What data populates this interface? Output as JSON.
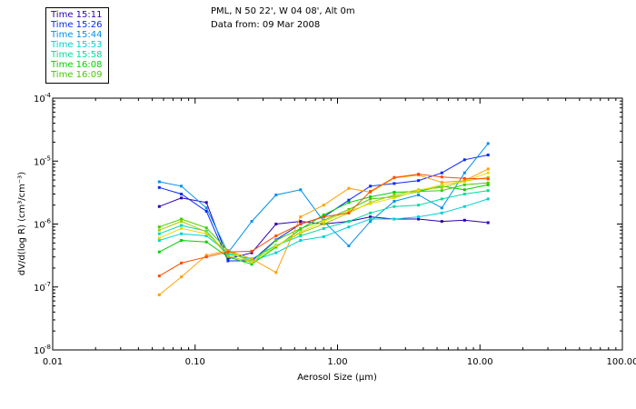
{
  "header": {
    "location": "PML, N 50 22', W 04 08', Alt 0m",
    "date": "Data from: 09 Mar 2008"
  },
  "legend": {
    "entries": [
      {
        "label": "Time 15:11",
        "color": "#2d00b4"
      },
      {
        "label": "Time 15:26",
        "color": "#0a28ff"
      },
      {
        "label": "Time 15:44",
        "color": "#0090ee"
      },
      {
        "label": "Time 15:53",
        "color": "#00d2d2"
      },
      {
        "label": "Time 15:58",
        "color": "#00dca0"
      },
      {
        "label": "Time 16:08",
        "color": "#00d200"
      },
      {
        "label": "Time 16:09",
        "color": "#44cc00"
      }
    ]
  },
  "chart_data": {
    "type": "line",
    "title": "PML, N 50 22', W 04 08', Alt 0m",
    "xlabel": "Aerosol Size (μm)",
    "ylabel": "dV/d(log R) (cm³/cm⁻³)",
    "xscale": "log",
    "yscale": "log",
    "xlim": [
      0.01,
      100
    ],
    "ylim": [
      1e-08,
      0.0001
    ],
    "xticks": [
      {
        "value": 0.01,
        "label": "0.01"
      },
      {
        "value": 0.1,
        "label": "0.10"
      },
      {
        "value": 1,
        "label": "1.00"
      },
      {
        "value": 10,
        "label": "10.00"
      },
      {
        "value": 100,
        "label": "100.00"
      }
    ],
    "yticks": [
      {
        "value": 0.0001,
        "label": "10",
        "exp": "-4"
      },
      {
        "value": 1e-05,
        "label": "10",
        "exp": "-5"
      },
      {
        "value": 1e-06,
        "label": "10",
        "exp": "-6"
      },
      {
        "value": 1e-07,
        "label": "10",
        "exp": "-7"
      },
      {
        "value": 1e-08,
        "label": "10",
        "exp": "-8"
      }
    ],
    "x": [
      0.056,
      0.08,
      0.12,
      0.17,
      0.25,
      0.37,
      0.55,
      0.8,
      1.2,
      1.7,
      2.5,
      3.7,
      5.4,
      7.8,
      11.4
    ],
    "series": [
      {
        "name": "Time 15:11",
        "color": "#2d00b4",
        "values": [
          1.9e-06,
          2.6e-06,
          2.2e-06,
          2.8e-07,
          3.5e-07,
          1e-06,
          1.1e-06,
          1e-06,
          1.1e-06,
          1.3e-06,
          1.2e-06,
          1.2e-06,
          1.1e-06,
          1.15e-06,
          1.05e-06
        ]
      },
      {
        "name": "Time 15:26",
        "color": "#0a28ff",
        "values": [
          3.8e-06,
          3e-06,
          1.6e-06,
          2.6e-07,
          2.6e-07,
          5.6e-07,
          1e-06,
          1.3e-06,
          2.4e-06,
          4e-06,
          4.4e-06,
          4.9e-06,
          6.5e-06,
          1.05e-05,
          1.25e-05
        ]
      },
      {
        "name": "Time 15:44",
        "color": "#0090ee",
        "values": [
          4.7e-06,
          4e-06,
          1.8e-06,
          3.5e-07,
          1.1e-06,
          2.9e-06,
          3.5e-06,
          1.1e-06,
          4.5e-07,
          1.1e-06,
          2.3e-06,
          2.9e-06,
          1.8e-06,
          6.5e-06,
          1.9e-05
        ]
      },
      {
        "name": "Time 15:53",
        "color": "#00d2d2",
        "values": [
          5.5e-07,
          7e-07,
          6.5e-07,
          3.5e-07,
          2.6e-07,
          3.5e-07,
          5.5e-07,
          6.3e-07,
          9e-07,
          1.2e-06,
          1.2e-06,
          1.3e-06,
          1.5e-06,
          1.9e-06,
          2.5e-06
        ]
      },
      {
        "name": "Time 15:58",
        "color": "#00dca0",
        "values": [
          7e-07,
          9.5e-07,
          7.7e-07,
          3.3e-07,
          2.8e-07,
          4.6e-07,
          6.5e-07,
          8.5e-07,
          1.1e-06,
          1.5e-06,
          1.9e-06,
          2e-06,
          2.5e-06,
          3e-06,
          3.4e-06
        ]
      },
      {
        "name": "Time 16:08",
        "color": "#00d200",
        "values": [
          3.6e-07,
          5.5e-07,
          5.2e-07,
          3e-07,
          2.3e-07,
          4.3e-07,
          8.3e-07,
          1.4e-06,
          2.2e-06,
          2.7e-06,
          3.2e-06,
          3.3e-06,
          4e-06,
          3.5e-06,
          4.2e-06
        ]
      },
      {
        "name": "Time 16:09",
        "color": "#44cc00",
        "values": [
          9e-07,
          1.2e-06,
          8.7e-07,
          3.8e-07,
          2.4e-07,
          5.5e-07,
          8.5e-07,
          1.15e-06,
          1.7e-06,
          2.5e-06,
          2.7e-06,
          3.3e-06,
          3.4e-06,
          4.2e-06,
          4.5e-06
        ]
      },
      {
        "name": "",
        "color": "#a8cc00",
        "values": [
          8e-07,
          1.1e-06,
          7.5e-07,
          3.1e-07,
          2.5e-07,
          4.5e-07,
          7.2e-07,
          1e-06,
          1.5e-06,
          2.2e-06,
          2.9e-06,
          3.5e-06,
          3.8e-06,
          4.8e-06,
          5.5e-06
        ]
      },
      {
        "name": "",
        "color": "#e6dc00",
        "values": [
          6e-07,
          8.5e-07,
          7e-07,
          3.6e-07,
          2.5e-07,
          4.5e-07,
          7.5e-07,
          1.1e-06,
          1.6e-06,
          2.1e-06,
          2.6e-06,
          3.4e-06,
          4.2e-06,
          4.8e-06,
          6.5e-06
        ]
      },
      {
        "name": "",
        "color": "#ffa000",
        "values": [
          7.5e-08,
          1.45e-07,
          3.2e-07,
          3.8e-07,
          2.8e-07,
          1.7e-07,
          1.3e-06,
          2e-06,
          3.7e-06,
          3.2e-06,
          5.4e-06,
          6e-06,
          4.6e-06,
          4.9e-06,
          7.5e-06
        ]
      },
      {
        "name": "",
        "color": "#ff4c00",
        "values": [
          1.5e-07,
          2.4e-07,
          3e-07,
          3.6e-07,
          3.7e-07,
          6.5e-07,
          1e-06,
          1.3e-06,
          1.5e-06,
          3.3e-06,
          5.5e-06,
          6.2e-06,
          5.6e-06,
          5.3e-06,
          5.2e-06
        ]
      }
    ]
  }
}
